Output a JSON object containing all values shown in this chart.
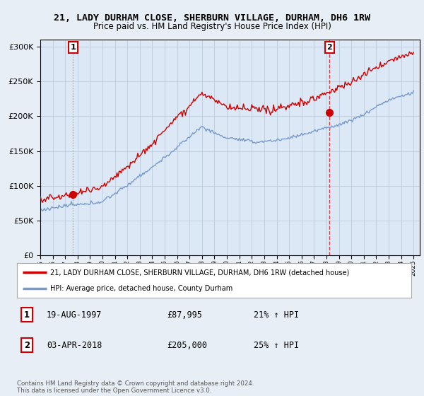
{
  "title_line1": "21, LADY DURHAM CLOSE, SHERBURN VILLAGE, DURHAM, DH6 1RW",
  "title_line2": "Price paid vs. HM Land Registry's House Price Index (HPI)",
  "ytick_values": [
    0,
    50000,
    100000,
    150000,
    200000,
    250000,
    300000
  ],
  "ylim": [
    0,
    310000
  ],
  "sale1_date_num": 1997.63,
  "sale1_price": 87995,
  "sale2_date_num": 2018.25,
  "sale2_price": 205000,
  "legend_line1": "21, LADY DURHAM CLOSE, SHERBURN VILLAGE, DURHAM, DH6 1RW (detached house)",
  "legend_line2": "HPI: Average price, detached house, County Durham",
  "annotation1_label": "1",
  "annotation1_date": "19-AUG-1997",
  "annotation1_price": "£87,995",
  "annotation1_hpi": "21% ↑ HPI",
  "annotation2_label": "2",
  "annotation2_date": "03-APR-2018",
  "annotation2_price": "£205,000",
  "annotation2_hpi": "25% ↑ HPI",
  "footer": "Contains HM Land Registry data © Crown copyright and database right 2024.\nThis data is licensed under the Open Government Licence v3.0.",
  "red_color": "#cc0000",
  "blue_color": "#7799cc",
  "bg_color": "#e8eef5",
  "plot_bg": "#dce8f5",
  "grid_color": "#bbccdd",
  "vline1_color": "#999999",
  "vline2_color": "#cc0000"
}
